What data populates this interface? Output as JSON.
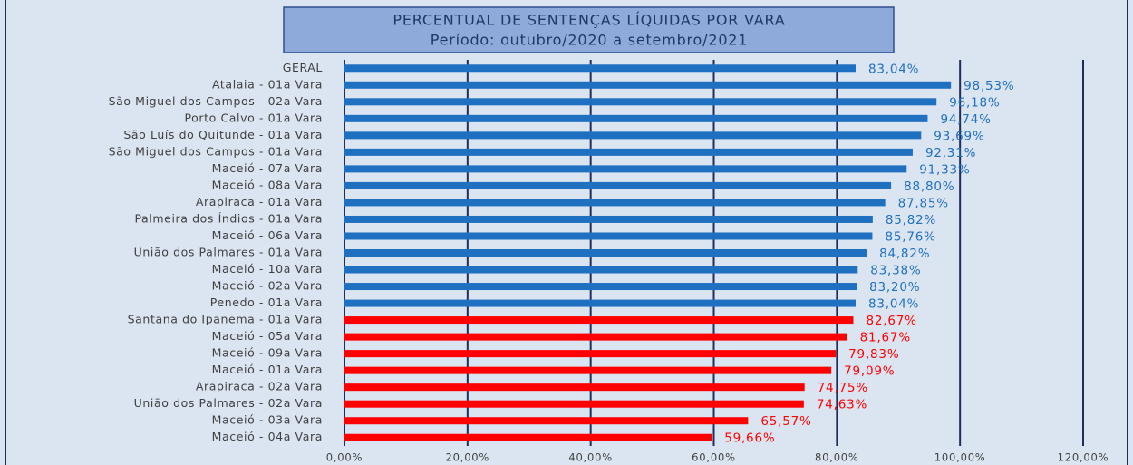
{
  "chart_data": {
    "type": "hbar",
    "title": "PERCENTUAL DE SENTENÇAS LÍQUIDAS POR VARA",
    "subtitle": "Período: outubro/2020 a setembro/2021",
    "categories": [
      "GERAL",
      "Atalaia - 01a Vara",
      "São Miguel dos Campos - 02a Vara",
      "Porto Calvo - 01a Vara",
      "São Luís do Quitunde - 01a Vara",
      "São Miguel dos Campos - 01a Vara",
      "Maceió - 07a Vara",
      "Maceió - 08a Vara",
      "Arapiraca - 01a Vara",
      "Palmeira dos Índios - 01a Vara",
      "Maceió - 06a Vara",
      "União dos Palmares - 01a Vara",
      "Maceió - 10a Vara",
      "Maceió - 02a Vara",
      "Penedo - 01a Vara",
      "Santana do Ipanema - 01a Vara",
      "Maceió - 05a Vara",
      "Maceió - 09a Vara",
      "Maceió - 01a Vara",
      "Arapiraca - 02a Vara",
      "União dos Palmares - 02a Vara",
      "Maceió - 03a Vara",
      "Maceió - 04a Vara"
    ],
    "values": [
      83.04,
      98.53,
      96.18,
      94.74,
      93.69,
      92.31,
      91.33,
      88.8,
      87.85,
      85.82,
      85.76,
      84.82,
      83.38,
      83.2,
      83.04,
      82.67,
      81.67,
      79.83,
      79.09,
      74.75,
      74.63,
      65.57,
      59.66
    ],
    "value_labels": [
      "83,04%",
      "98,53%",
      "96,18%",
      "94,74%",
      "93,69%",
      "92,31%",
      "91,33%",
      "88,80%",
      "87,85%",
      "85,82%",
      "85,76%",
      "84,82%",
      "83,38%",
      "83,20%",
      "83,04%",
      "82,67%",
      "81,67%",
      "79,83%",
      "79,09%",
      "74,75%",
      "74,63%",
      "65,57%",
      "59,66%"
    ],
    "colors": [
      "#1f70c1",
      "#1f70c1",
      "#1f70c1",
      "#1f70c1",
      "#1f70c1",
      "#1f70c1",
      "#1f70c1",
      "#1f70c1",
      "#1f70c1",
      "#1f70c1",
      "#1f70c1",
      "#1f70c1",
      "#1f70c1",
      "#1f70c1",
      "#1f70c1",
      "#ff0000",
      "#ff0000",
      "#ff0000",
      "#ff0000",
      "#ff0000",
      "#ff0000",
      "#ff0000",
      "#ff0000"
    ],
    "xlim": [
      0,
      120
    ],
    "xticks": [
      {
        "value": 0,
        "label": "0,00%"
      },
      {
        "value": 20,
        "label": "20,00%"
      },
      {
        "value": 40,
        "label": "40,00%"
      },
      {
        "value": 60,
        "label": "60,00%"
      },
      {
        "value": 80,
        "label": "80,00%"
      },
      {
        "value": 100,
        "label": "100,00%"
      },
      {
        "value": 120,
        "label": "120,00%"
      }
    ],
    "grid": true
  }
}
